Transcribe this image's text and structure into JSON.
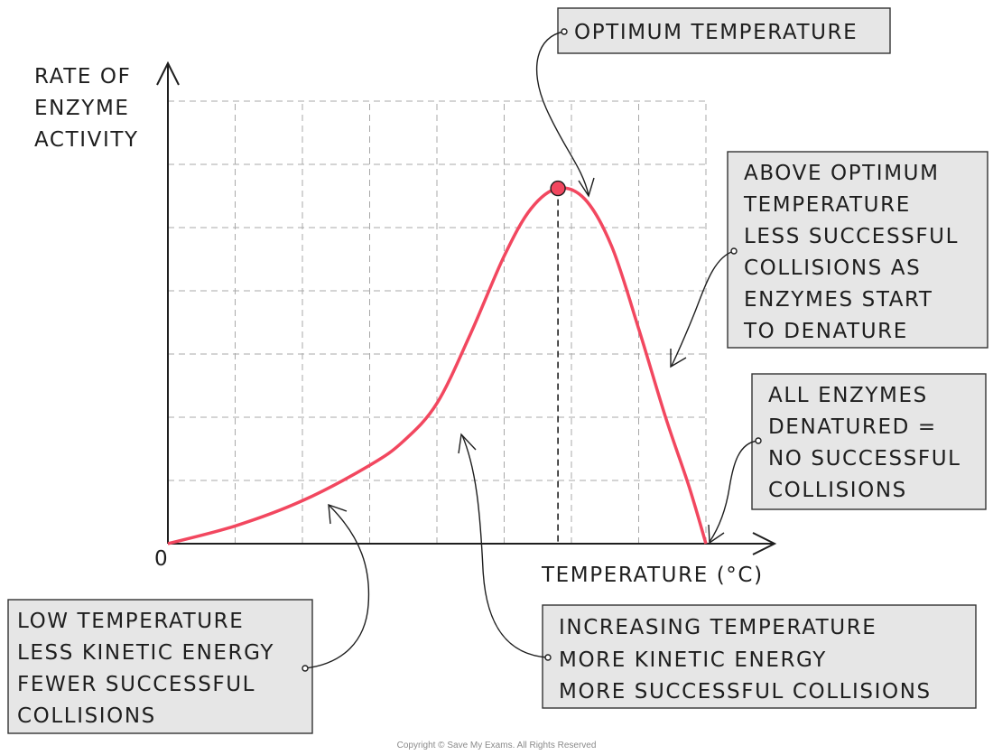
{
  "chart_data": {
    "type": "line",
    "title": "",
    "ylabel": [
      "RATE OF",
      "ENZYME",
      "ACTIVITY"
    ],
    "xlabel": "TEMPERATURE (°C)",
    "origin_label": "0",
    "grid": true,
    "x_ticks_labeled": false,
    "y_ticks_labeled": false,
    "xlim": [
      0,
      9
    ],
    "ylim": [
      0,
      7
    ],
    "series": [
      {
        "color": "#f2475f",
        "x": [
          0,
          1,
          2,
          3,
          3.5,
          4,
          4.5,
          5,
          5.4,
          5.8,
          6.2,
          6.6,
          7,
          7.4,
          7.75,
          8
        ],
        "y": [
          0,
          0.28,
          0.68,
          1.24,
          1.62,
          2.22,
          3.32,
          4.55,
          5.3,
          5.62,
          5.45,
          4.7,
          3.4,
          2.0,
          0.9,
          0
        ]
      }
    ],
    "optimum_point": {
      "x": 5.8,
      "y": 5.62,
      "color": "#f2475f"
    }
  },
  "annotations": {
    "optimum": [
      "OPTIMUM TEMPERATURE"
    ],
    "above_optimum": [
      "ABOVE OPTIMUM",
      "TEMPERATURE",
      "LESS SUCCESSFUL",
      "COLLISIONS AS",
      "ENZYMES START",
      "TO DENATURE"
    ],
    "all_denatured": [
      "ALL ENZYMES",
      "DENATURED =",
      "NO SUCCESSFUL",
      "COLLISIONS"
    ],
    "low_temperature": [
      "LOW TEMPERATURE",
      "LESS KINETIC ENERGY",
      "FEWER SUCCESSFUL",
      "COLLISIONS"
    ],
    "increasing_temperature": [
      "INCREASING TEMPERATURE",
      "MORE KINETIC ENERGY",
      "MORE SUCCESSFUL COLLISIONS"
    ]
  },
  "footer": {
    "copyright": "Copyright © Save My Exams. All Rights Reserved"
  }
}
